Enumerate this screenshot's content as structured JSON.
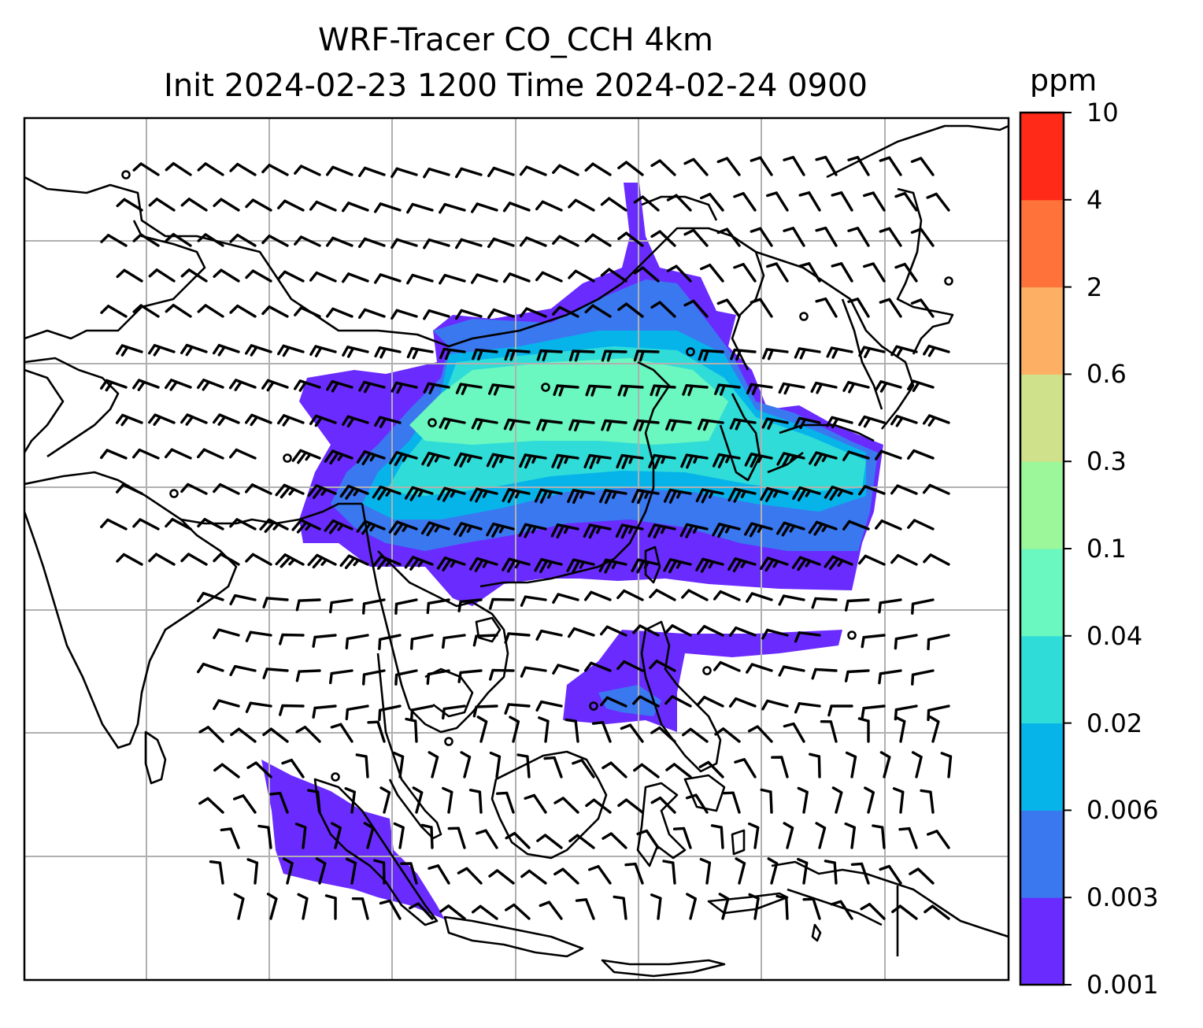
{
  "title": {
    "line1": "WRF-Tracer CO_CCH 4km",
    "line2": "Init 2024-02-23 1200 Time 2024-02-24 0900"
  },
  "colorbar": {
    "unit": "ppm",
    "levels": [
      "0.001",
      "0.003",
      "0.006",
      "0.02",
      "0.04",
      "0.1",
      "0.3",
      "0.6",
      "2",
      "4",
      "10"
    ],
    "colors": [
      "#6a2bff",
      "#3a78f0",
      "#07b4ea",
      "#30dcd8",
      "#6bf7c0",
      "#9cf79a",
      "#cfe18a",
      "#fdb064",
      "#ff723a",
      "#ff2a18"
    ]
  },
  "map": {
    "extent_lon": [
      60,
      140
    ],
    "extent_lat": [
      -15,
      42
    ],
    "gridlines": true,
    "features": [
      "coastlines",
      "country borders",
      "wind barbs",
      "CO tracer concentration"
    ]
  }
}
